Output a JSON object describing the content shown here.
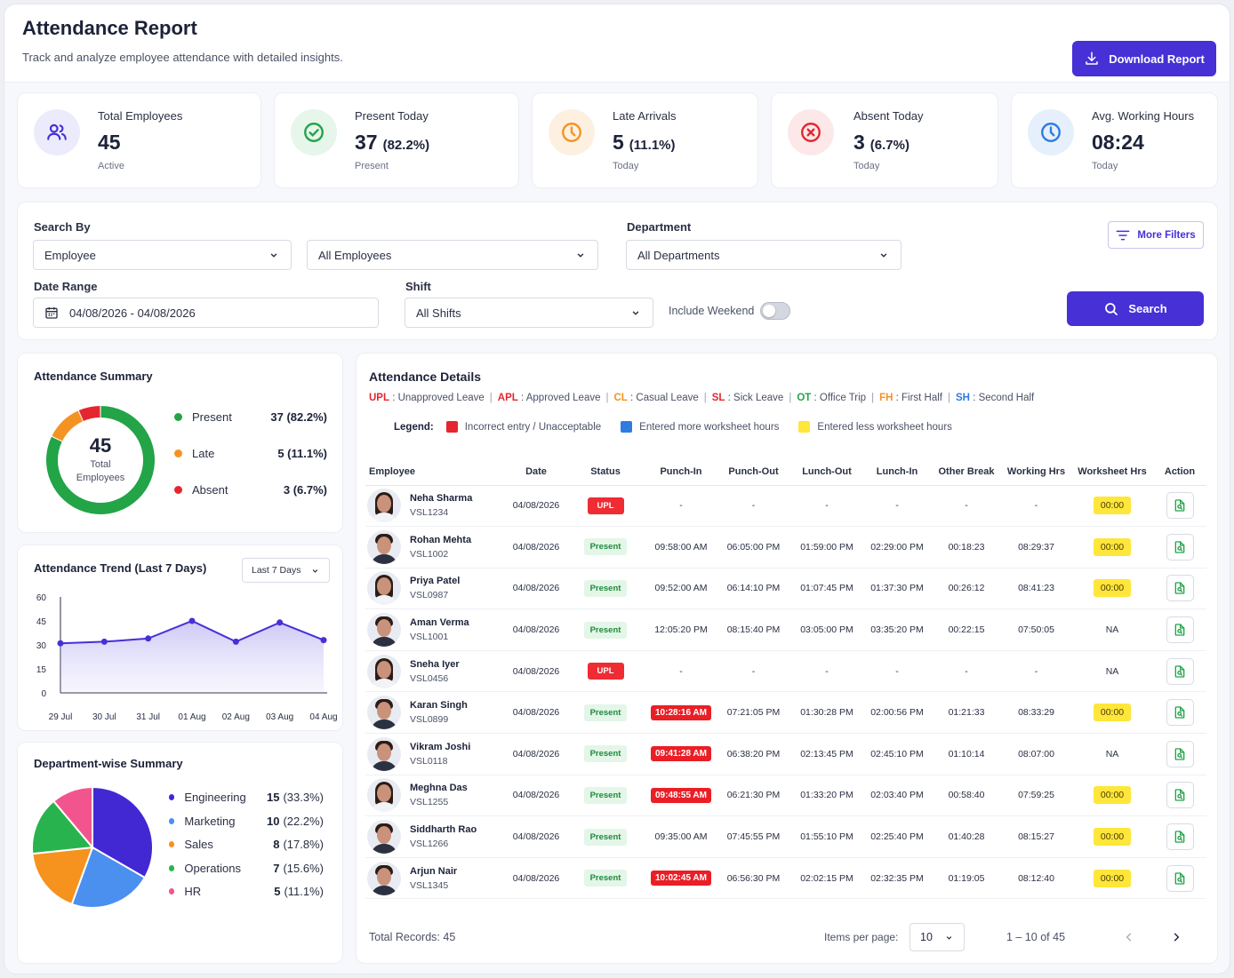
{
  "header": {
    "title": "Attendance Report",
    "subtitle": "Track and analyze employee attendance with detailed insights.",
    "download_label": "Download Report"
  },
  "stats": [
    {
      "label": "Total Employees",
      "value": "45",
      "pct": "",
      "sub": "Active",
      "icon": "users-icon",
      "color": "#4630d6"
    },
    {
      "label": "Present Today",
      "value": "37",
      "pct": "(82.2%)",
      "sub": "Present",
      "icon": "check-circle-icon",
      "color": "#22a447"
    },
    {
      "label": "Late Arrivals",
      "value": "5",
      "pct": "(11.1%)",
      "sub": "Today",
      "icon": "clock-icon",
      "color": "#f59322"
    },
    {
      "label": "Absent Today",
      "value": "3",
      "pct": "(6.7%)",
      "sub": "Today",
      "icon": "x-circle-icon",
      "color": "#e5262f"
    },
    {
      "label": "Avg. Working Hours",
      "value": "08:24",
      "pct": "",
      "sub": "Today",
      "icon": "clock-icon",
      "color": "#2f7be0"
    }
  ],
  "filters": {
    "search_by_label": "Search By",
    "search_by_value": "Employee",
    "employee_value": "All Employees",
    "department_label": "Department",
    "department_value": "All Departments",
    "more_filters_label": "More Filters",
    "date_range_label": "Date Range",
    "date_range_value": "04/08/2026 - 04/08/2026",
    "shift_label": "Shift",
    "shift_value": "All Shifts",
    "include_weekend_label": "Include Weekend",
    "include_weekend_on": false,
    "search_label": "Search"
  },
  "summary": {
    "title": "Attendance Summary",
    "total_value": "45",
    "total_label_1": "Total",
    "total_label_2": "Employees",
    "items": [
      {
        "label": "Present",
        "value": "37 (82.2%)",
        "color": "#22a447"
      },
      {
        "label": "Late",
        "value": "5 (11.1%)",
        "color": "#f59322"
      },
      {
        "label": "Absent",
        "value": "3 (6.7%)",
        "color": "#e5262f"
      }
    ]
  },
  "trend": {
    "title": "Attendance Trend (Last 7 Days)",
    "range_select": "Last 7 Days",
    "chart_data": {
      "type": "area",
      "categories": [
        "29 Jul",
        "30 Jul",
        "31 Jul",
        "01 Aug",
        "02 Aug",
        "03 Aug",
        "04 Aug"
      ],
      "series": [
        {
          "values": [
            31,
            32,
            34,
            45,
            32,
            44,
            33
          ]
        }
      ],
      "ylim": [
        0,
        60
      ],
      "yticks": [
        "0",
        "15",
        "30",
        "45",
        "60"
      ],
      "color": "#4630d6"
    }
  },
  "department": {
    "title": "Department-wise Summary",
    "items": [
      {
        "label": "Engineering",
        "count": "15",
        "pct": "(33.3%)",
        "value": 15,
        "color": "#4128d2"
      },
      {
        "label": "Marketing",
        "count": "10",
        "pct": "(22.2%)",
        "value": 10,
        "color": "#4b8fef"
      },
      {
        "label": "Sales",
        "count": "8",
        "pct": "(17.8%)",
        "value": 8,
        "color": "#f6921e"
      },
      {
        "label": "Operations",
        "count": "7",
        "pct": "(15.6%)",
        "value": 7,
        "color": "#29b34f"
      },
      {
        "label": "HR",
        "count": "5",
        "pct": "(11.1%)",
        "value": 5,
        "color": "#f2558e"
      }
    ]
  },
  "details": {
    "title": "Attendance Details",
    "abbreviations": [
      {
        "key": "UPL",
        "text": "Unapproved Leave",
        "color": "#e5262f"
      },
      {
        "key": "APL",
        "text": "Approved Leave",
        "color": "#e5262f"
      },
      {
        "key": "CL",
        "text": "Casual Leave",
        "color": "#f59322"
      },
      {
        "key": "SL",
        "text": "Sick Leave",
        "color": "#e5262f"
      },
      {
        "key": "OT",
        "text": "Office Trip",
        "color": "#22a447"
      },
      {
        "key": "FH",
        "text": "First Half",
        "color": "#f59322"
      },
      {
        "key": "SH",
        "text": "Second Half",
        "color": "#2f7be0"
      }
    ],
    "legend_title": "Legend:",
    "legend": [
      {
        "text": "Incorrect entry / Unacceptable",
        "color": "#e5262f"
      },
      {
        "text": "Entered more worksheet hours",
        "color": "#2f7be0"
      },
      {
        "text": "Entered less worksheet hours",
        "color": "#ffe63a"
      }
    ],
    "columns": [
      "Employee",
      "Date",
      "Status",
      "Punch-In",
      "Punch-Out",
      "Lunch-Out",
      "Lunch-In",
      "Other Break",
      "Working Hrs",
      "Worksheet Hrs",
      "Action"
    ],
    "rows": [
      {
        "name": "Neha Sharma",
        "id": "VSL1234",
        "date": "04/08/2026",
        "status": "UPL",
        "punch_in": "-",
        "punch_in_flag": false,
        "punch_out": "-",
        "lunch_out": "-",
        "lunch_in": "-",
        "other_break": "-",
        "working": "-",
        "worksheet": "00:00",
        "ws_flag": true,
        "female": true
      },
      {
        "name": "Rohan Mehta",
        "id": "VSL1002",
        "date": "04/08/2026",
        "status": "Present",
        "punch_in": "09:58:00 AM",
        "punch_in_flag": false,
        "punch_out": "06:05:00 PM",
        "lunch_out": "01:59:00 PM",
        "lunch_in": "02:29:00 PM",
        "other_break": "00:18:23",
        "working": "08:29:37",
        "worksheet": "00:00",
        "ws_flag": true,
        "female": false
      },
      {
        "name": "Priya Patel",
        "id": "VSL0987",
        "date": "04/08/2026",
        "status": "Present",
        "punch_in": "09:52:00 AM",
        "punch_in_flag": false,
        "punch_out": "06:14:10 PM",
        "lunch_out": "01:07:45 PM",
        "lunch_in": "01:37:30 PM",
        "other_break": "00:26:12",
        "working": "08:41:23",
        "worksheet": "00:00",
        "ws_flag": true,
        "female": true
      },
      {
        "name": "Aman Verma",
        "id": "VSL1001",
        "date": "04/08/2026",
        "status": "Present",
        "punch_in": "12:05:20 PM",
        "punch_in_flag": false,
        "punch_out": "08:15:40 PM",
        "lunch_out": "03:05:00 PM",
        "lunch_in": "03:35:20 PM",
        "other_break": "00:22:15",
        "working": "07:50:05",
        "worksheet": "NA",
        "ws_flag": false,
        "female": false
      },
      {
        "name": "Sneha Iyer",
        "id": "VSL0456",
        "date": "04/08/2026",
        "status": "UPL",
        "punch_in": "-",
        "punch_in_flag": false,
        "punch_out": "-",
        "lunch_out": "-",
        "lunch_in": "-",
        "other_break": "-",
        "working": "-",
        "worksheet": "NA",
        "ws_flag": false,
        "female": true
      },
      {
        "name": "Karan Singh",
        "id": "VSL0899",
        "date": "04/08/2026",
        "status": "Present",
        "punch_in": "10:28:16 AM",
        "punch_in_flag": true,
        "punch_out": "07:21:05 PM",
        "lunch_out": "01:30:28 PM",
        "lunch_in": "02:00:56 PM",
        "other_break": "01:21:33",
        "working": "08:33:29",
        "worksheet": "00:00",
        "ws_flag": true,
        "female": false
      },
      {
        "name": "Vikram Joshi",
        "id": "VSL0118",
        "date": "04/08/2026",
        "status": "Present",
        "punch_in": "09:41:28 AM",
        "punch_in_flag": true,
        "punch_out": "06:38:20 PM",
        "lunch_out": "02:13:45 PM",
        "lunch_in": "02:45:10 PM",
        "other_break": "01:10:14",
        "working": "08:07:00",
        "worksheet": "NA",
        "ws_flag": false,
        "female": false
      },
      {
        "name": "Meghna Das",
        "id": "VSL1255",
        "date": "04/08/2026",
        "status": "Present",
        "punch_in": "09:48:55 AM",
        "punch_in_flag": true,
        "punch_out": "06:21:30 PM",
        "lunch_out": "01:33:20 PM",
        "lunch_in": "02:03:40 PM",
        "other_break": "00:58:40",
        "working": "07:59:25",
        "worksheet": "00:00",
        "ws_flag": true,
        "female": true
      },
      {
        "name": "Siddharth Rao",
        "id": "VSL1266",
        "date": "04/08/2026",
        "status": "Present",
        "punch_in": "09:35:00 AM",
        "punch_in_flag": false,
        "punch_out": "07:45:55 PM",
        "lunch_out": "01:55:10 PM",
        "lunch_in": "02:25:40 PM",
        "other_break": "01:40:28",
        "working": "08:15:27",
        "worksheet": "00:00",
        "ws_flag": true,
        "female": false
      },
      {
        "name": "Arjun Nair",
        "id": "VSL1345",
        "date": "04/08/2026",
        "status": "Present",
        "punch_in": "10:02:45 AM",
        "punch_in_flag": true,
        "punch_out": "06:56:30 PM",
        "lunch_out": "02:02:15 PM",
        "lunch_in": "02:32:35 PM",
        "other_break": "01:19:05",
        "working": "08:12:40",
        "worksheet": "00:00",
        "ws_flag": true,
        "female": false
      }
    ],
    "total_records": "Total Records: 45",
    "items_per_page_label": "Items per page:",
    "items_per_page_value": "10",
    "range_text": "1 – 10 of 45"
  }
}
